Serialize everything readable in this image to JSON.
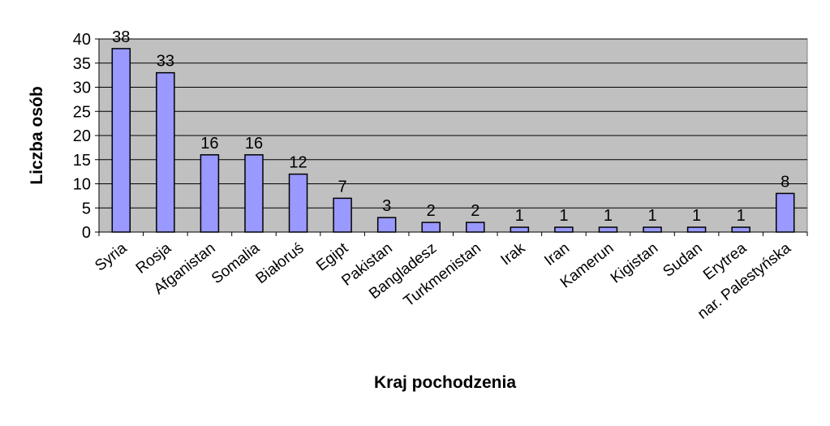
{
  "chart_data": {
    "type": "bar",
    "title": "",
    "xlabel": "Kraj pochodzenia",
    "ylabel": "Liczba osób",
    "ylim": [
      0,
      40
    ],
    "yticks": [
      0,
      5,
      10,
      15,
      20,
      25,
      30,
      35,
      40
    ],
    "grid": true,
    "categories": [
      "Syria",
      "Rosja",
      "Afganistan",
      "Somalia",
      "Białoruś",
      "Egipt",
      "Pakistan",
      "Bangladesz",
      "Turkmenistan",
      "Irak",
      "Iran",
      "Kamerun",
      "Kigistan",
      "Sudan",
      "Erytrea",
      "nar. Palestyńska"
    ],
    "values": [
      38,
      33,
      16,
      16,
      12,
      7,
      3,
      2,
      2,
      1,
      1,
      1,
      1,
      1,
      1,
      8
    ],
    "data_labels": [
      "38",
      "33",
      "16",
      "16",
      "12",
      "7",
      "3",
      "2",
      "2",
      "1",
      "1",
      "1",
      "1",
      "1",
      "1",
      "8"
    ],
    "colors": {
      "plot_background": "#c0c0c0",
      "bar_fill": "#9999ff",
      "bar_stroke": "#000000",
      "gridline": "#000000"
    }
  }
}
